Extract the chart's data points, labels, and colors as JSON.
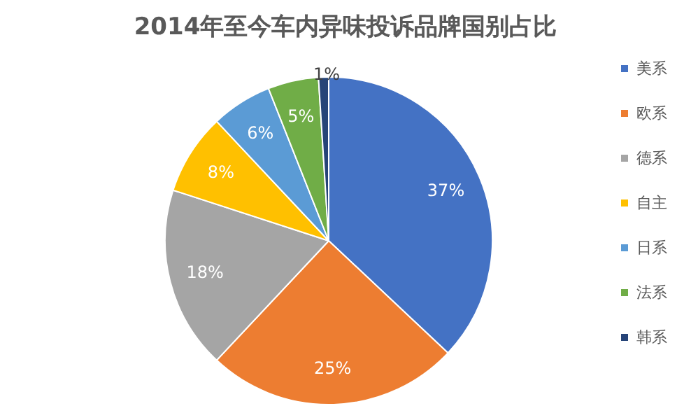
{
  "chart_data": {
    "type": "pie",
    "title": "2014年至今车内异味投诉品牌国别占比",
    "categories": [
      "美系",
      "欧系",
      "德系",
      "自主",
      "日系",
      "法系",
      "韩系"
    ],
    "values": [
      37,
      25,
      18,
      8,
      6,
      5,
      1
    ],
    "colors": [
      "#4472c4",
      "#ed7d31",
      "#a5a5a5",
      "#ffc000",
      "#5b9bd5",
      "#70ad47",
      "#264478"
    ],
    "value_labels": [
      "37%",
      "25%",
      "18%",
      "8%",
      "6%",
      "5%",
      "1%"
    ],
    "legend": "right"
  }
}
